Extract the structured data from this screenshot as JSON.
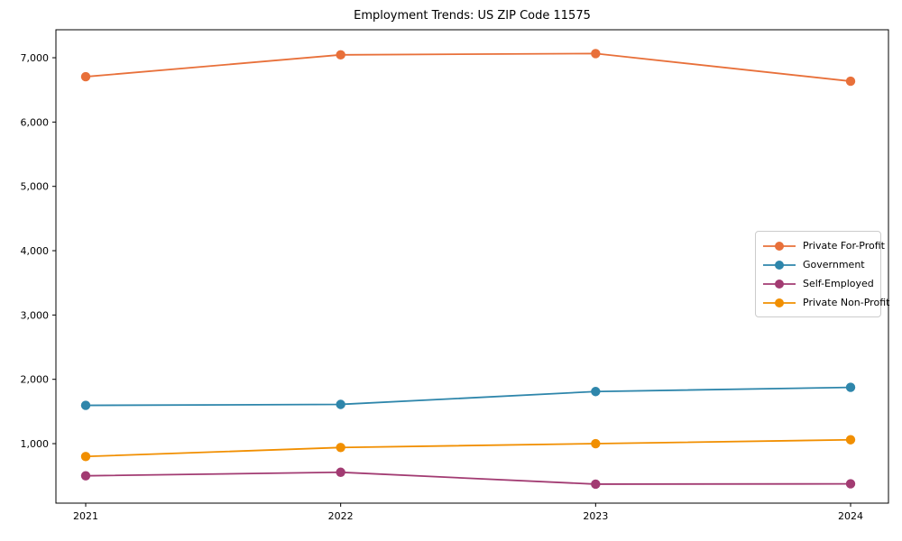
{
  "figure": {
    "title": "Employment Trends: US ZIP Code 11575"
  },
  "chart_data": {
    "type": "line",
    "title": "Employment Trends: US ZIP Code 11575",
    "xlabel": "",
    "ylabel": "",
    "categories": [
      "2021",
      "2022",
      "2023",
      "2024"
    ],
    "series": [
      {
        "name": "Private For-Profit",
        "color": "#E8703A",
        "values": [
          6705,
          7045,
          7065,
          6635
        ]
      },
      {
        "name": "Government",
        "color": "#2E86AB",
        "values": [
          1595,
          1610,
          1810,
          1875
        ]
      },
      {
        "name": "Self-Employed",
        "color": "#A23B72",
        "values": [
          500,
          555,
          370,
          375
        ]
      },
      {
        "name": "Private Non-Profit",
        "color": "#F18F01",
        "values": [
          800,
          940,
          1000,
          1060
        ]
      }
    ],
    "ylim": [
      75,
      7435
    ],
    "y_ticks": [
      1000,
      2000,
      3000,
      4000,
      5000,
      6000,
      7000
    ],
    "y_tick_labels": [
      "1,000",
      "2,000",
      "3,000",
      "4,000",
      "5,000",
      "6,000",
      "7,000"
    ],
    "grid": false,
    "marker": "circle",
    "legend_position": "center-right",
    "axis_color": "#000000",
    "legend_border_color": "#cccccc"
  }
}
